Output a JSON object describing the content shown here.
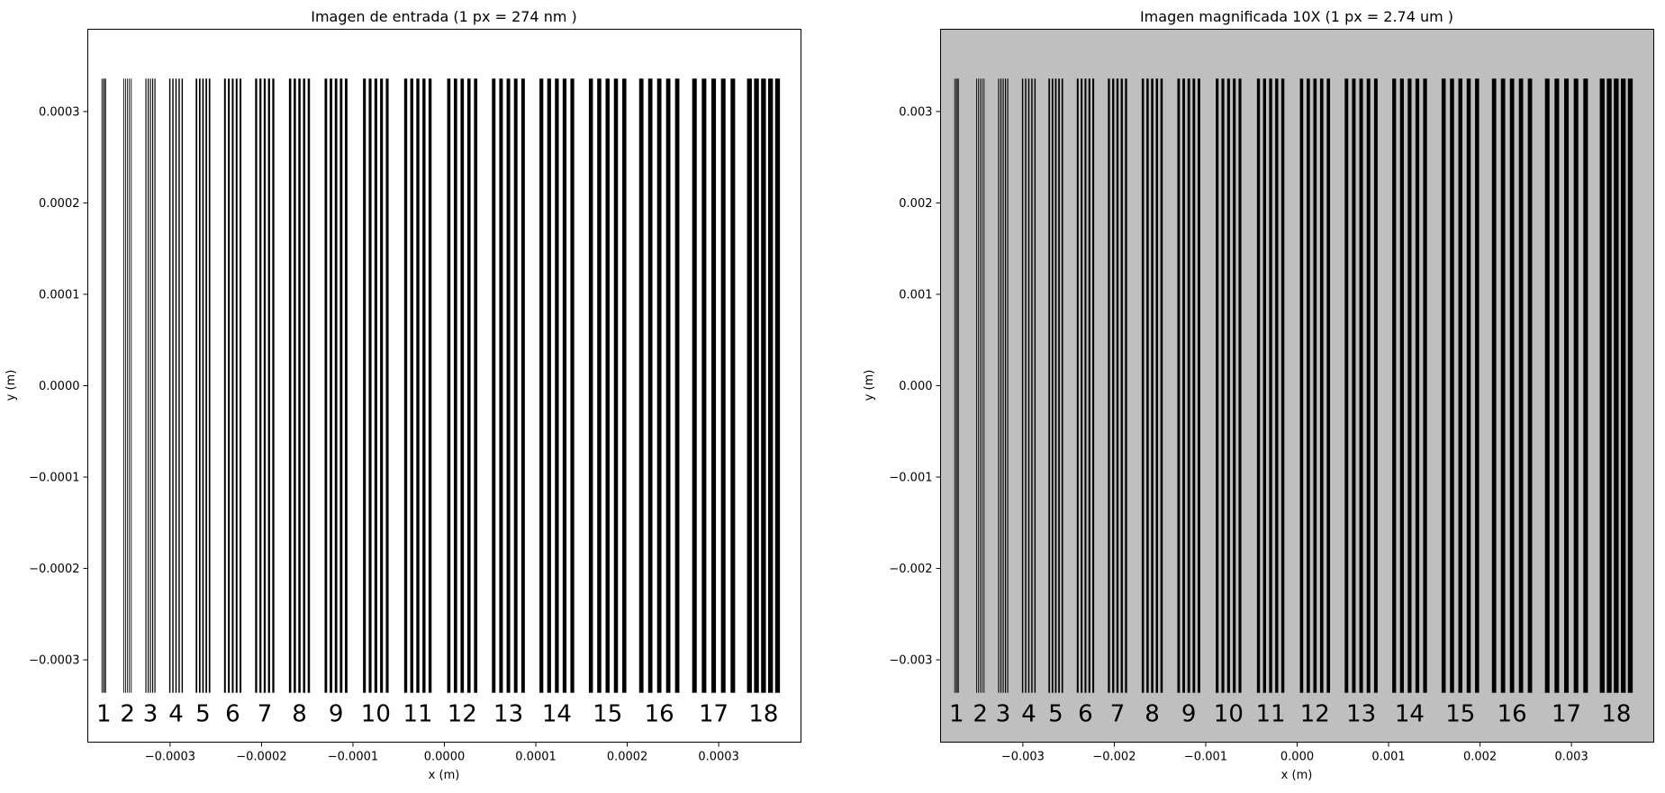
{
  "chart_data": [
    {
      "type": "heatmap",
      "title": "Imagen de entrada (1 px = 274 nm )",
      "xlabel": "x (m)",
      "ylabel": "y (m)",
      "xlim": [
        -0.00039,
        0.00039
      ],
      "ylim": [
        -0.00039,
        0.00039
      ],
      "xticks": [
        -0.0003,
        -0.0002,
        -0.0001,
        0.0,
        0.0001,
        0.0002,
        0.0003
      ],
      "xtick_labels": [
        "−0.0003",
        "−0.0002",
        "−0.0001",
        "0.0000",
        "0.0001",
        "0.0002",
        "0.0003"
      ],
      "yticks": [
        0.0003,
        0.0002,
        0.0001,
        0.0,
        -0.0001,
        -0.0002,
        -0.0003
      ],
      "ytick_labels": [
        "0.0003",
        "0.0002",
        "0.0001",
        "0.0000",
        "−0.0001",
        "−0.0002",
        "−0.0003"
      ],
      "background": "#ffffff",
      "bar_color": "#000000",
      "bars_top": 0.000336,
      "bars_bottom": -0.000336,
      "group_labels": [
        "1",
        "2",
        "3",
        "4",
        "5",
        "6",
        "7",
        "8",
        "9",
        "10",
        "11",
        "12",
        "13",
        "14",
        "15",
        "16",
        "17",
        "18"
      ],
      "groups": [
        {
          "label": "1",
          "x_start": -0.000375,
          "x_end": -0.00037
        },
        {
          "label": "2",
          "x_start": -0.000351,
          "x_end": -0.000342
        },
        {
          "label": "3",
          "x_start": -0.000327,
          "x_end": -0.000316
        },
        {
          "label": "4",
          "x_start": -0.000301,
          "x_end": -0.000286
        },
        {
          "label": "5",
          "x_start": -0.000272,
          "x_end": -0.000256
        },
        {
          "label": "6",
          "x_start": -0.000241,
          "x_end": -0.000222
        },
        {
          "label": "7",
          "x_start": -0.000207,
          "x_end": -0.000186
        },
        {
          "label": "8",
          "x_start": -0.00017,
          "x_end": -0.000147
        },
        {
          "label": "9",
          "x_start": -0.000131,
          "x_end": -0.000106
        },
        {
          "label": "10",
          "x_start": -8.9e-05,
          "x_end": -6.1e-05
        },
        {
          "label": "11",
          "x_start": -4.4e-05,
          "x_end": -1.4e-05
        },
        {
          "label": "12",
          "x_start": 3e-06,
          "x_end": 3.6e-05
        },
        {
          "label": "13",
          "x_start": 5.2e-05,
          "x_end": 8.8e-05
        },
        {
          "label": "14",
          "x_start": 0.000104,
          "x_end": 0.000142
        },
        {
          "label": "15",
          "x_start": 0.000158,
          "x_end": 0.000199
        },
        {
          "label": "16",
          "x_start": 0.000213,
          "x_end": 0.000257
        },
        {
          "label": "17",
          "x_start": 0.000271,
          "x_end": 0.000318
        },
        {
          "label": "18",
          "x_start": 0.000331,
          "x_end": 0.000367
        }
      ]
    },
    {
      "type": "heatmap",
      "title": "Imagen magnificada 10X (1 px = 2.74 um )",
      "xlabel": "x (m)",
      "ylabel": "y (m)",
      "xlim": [
        -0.0039,
        0.0039
      ],
      "ylim": [
        -0.0039,
        0.0039
      ],
      "xticks": [
        -0.003,
        -0.002,
        -0.001,
        0.0,
        0.001,
        0.002,
        0.003
      ],
      "xtick_labels": [
        "−0.003",
        "−0.002",
        "−0.001",
        "0.000",
        "0.001",
        "0.002",
        "0.003"
      ],
      "yticks": [
        0.003,
        0.002,
        0.001,
        0.0,
        -0.001,
        -0.002,
        -0.003
      ],
      "ytick_labels": [
        "0.003",
        "0.002",
        "0.001",
        "0.000",
        "−0.001",
        "−0.002",
        "−0.003"
      ],
      "background": "#bfbfbf",
      "bar_color": "#000000",
      "bars_top": 0.00336,
      "bars_bottom": -0.00336,
      "group_labels": [
        "1",
        "2",
        "3",
        "4",
        "5",
        "6",
        "7",
        "8",
        "9",
        "10",
        "11",
        "12",
        "13",
        "14",
        "15",
        "16",
        "17",
        "18"
      ],
      "groups": [
        {
          "label": "1",
          "x_start": -0.00375,
          "x_end": -0.0037
        },
        {
          "label": "2",
          "x_start": -0.00351,
          "x_end": -0.00342
        },
        {
          "label": "3",
          "x_start": -0.00327,
          "x_end": -0.00316
        },
        {
          "label": "4",
          "x_start": -0.00301,
          "x_end": -0.00286
        },
        {
          "label": "5",
          "x_start": -0.00272,
          "x_end": -0.00256
        },
        {
          "label": "6",
          "x_start": -0.00241,
          "x_end": -0.00222
        },
        {
          "label": "7",
          "x_start": -0.00207,
          "x_end": -0.00186
        },
        {
          "label": "8",
          "x_start": -0.0017,
          "x_end": -0.00147
        },
        {
          "label": "9",
          "x_start": -0.00131,
          "x_end": -0.00106
        },
        {
          "label": "10",
          "x_start": -0.00089,
          "x_end": -0.00061
        },
        {
          "label": "11",
          "x_start": -0.00044,
          "x_end": -0.00014
        },
        {
          "label": "12",
          "x_start": 3e-05,
          "x_end": 0.00036
        },
        {
          "label": "13",
          "x_start": 0.00052,
          "x_end": 0.00088
        },
        {
          "label": "14",
          "x_start": 0.00104,
          "x_end": 0.00142
        },
        {
          "label": "15",
          "x_start": 0.00158,
          "x_end": 0.00199
        },
        {
          "label": "16",
          "x_start": 0.00213,
          "x_end": 0.00257
        },
        {
          "label": "17",
          "x_start": 0.00271,
          "x_end": 0.00318
        },
        {
          "label": "18",
          "x_start": 0.00331,
          "x_end": 0.00367
        }
      ]
    }
  ]
}
